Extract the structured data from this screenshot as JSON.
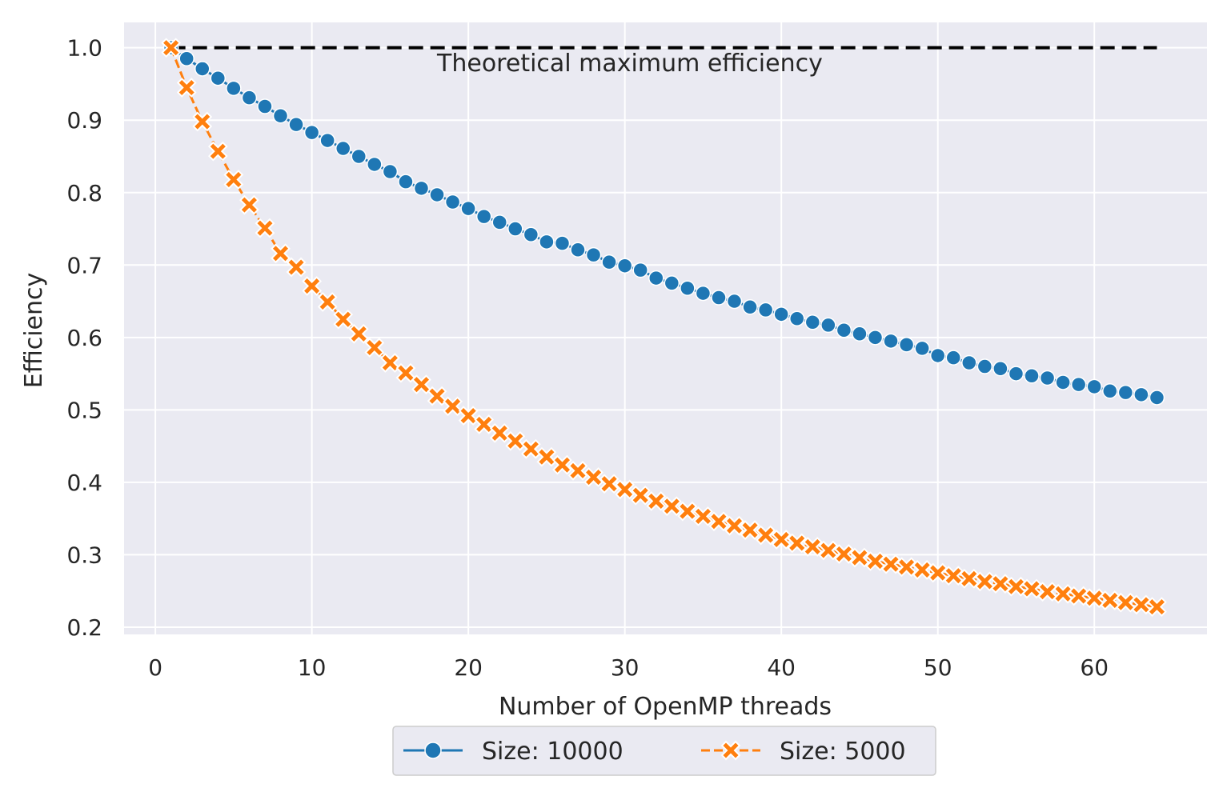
{
  "chart_data": {
    "type": "line",
    "xlabel": "Number of OpenMP threads",
    "ylabel": "Efficiency",
    "xlim": [
      -2,
      67.2
    ],
    "ylim": [
      0.19,
      1.035
    ],
    "xticks": [
      0,
      10,
      20,
      30,
      40,
      50,
      60
    ],
    "yticks": [
      0.2,
      0.3,
      0.4,
      0.5,
      0.6,
      0.7,
      0.8,
      0.9,
      1.0
    ],
    "grid": true,
    "legend": {
      "placement": "bottom-center, below plot",
      "columns": 2
    },
    "reference_line": {
      "x": [
        1,
        64
      ],
      "y": 1.0,
      "style": "dashed",
      "color": "#000000"
    },
    "annotation": {
      "text": "Theoretical maximum efficiency",
      "x": 18,
      "y": 0.98
    },
    "series": [
      {
        "name": "Size: 10000",
        "color": "#1f77b4",
        "marker": "circle",
        "line_style": "solid",
        "x": [
          1,
          2,
          3,
          4,
          5,
          6,
          7,
          8,
          9,
          10,
          11,
          12,
          13,
          14,
          15,
          16,
          17,
          18,
          19,
          20,
          21,
          22,
          23,
          24,
          25,
          26,
          27,
          28,
          29,
          30,
          31,
          32,
          33,
          34,
          35,
          36,
          37,
          38,
          39,
          40,
          41,
          42,
          43,
          44,
          45,
          46,
          47,
          48,
          49,
          50,
          51,
          52,
          53,
          54,
          55,
          56,
          57,
          58,
          59,
          60,
          61,
          62,
          63,
          64
        ],
        "values": [
          1.0,
          0.985,
          0.971,
          0.958,
          0.944,
          0.931,
          0.919,
          0.906,
          0.894,
          0.883,
          0.872,
          0.861,
          0.85,
          0.839,
          0.829,
          0.815,
          0.806,
          0.797,
          0.787,
          0.778,
          0.767,
          0.759,
          0.75,
          0.742,
          0.732,
          0.73,
          0.721,
          0.714,
          0.704,
          0.699,
          0.693,
          0.682,
          0.675,
          0.668,
          0.661,
          0.655,
          0.65,
          0.642,
          0.638,
          0.632,
          0.626,
          0.621,
          0.617,
          0.61,
          0.605,
          0.6,
          0.595,
          0.59,
          0.585,
          0.575,
          0.572,
          0.565,
          0.56,
          0.557,
          0.55,
          0.547,
          0.544,
          0.538,
          0.535,
          0.532,
          0.526,
          0.524,
          0.521,
          0.517
        ]
      },
      {
        "name": "Size: 5000",
        "color": "#ff7f0e",
        "marker": "x",
        "line_style": "dashed",
        "x": [
          1,
          2,
          3,
          4,
          5,
          6,
          7,
          8,
          9,
          10,
          11,
          12,
          13,
          14,
          15,
          16,
          17,
          18,
          19,
          20,
          21,
          22,
          23,
          24,
          25,
          26,
          27,
          28,
          29,
          30,
          31,
          32,
          33,
          34,
          35,
          36,
          37,
          38,
          39,
          40,
          41,
          42,
          43,
          44,
          45,
          46,
          47,
          48,
          49,
          50,
          51,
          52,
          53,
          54,
          55,
          56,
          57,
          58,
          59,
          60,
          61,
          62,
          63,
          64
        ],
        "values": [
          1.0,
          0.945,
          0.898,
          0.857,
          0.818,
          0.783,
          0.751,
          0.716,
          0.697,
          0.671,
          0.649,
          0.625,
          0.605,
          0.586,
          0.565,
          0.551,
          0.535,
          0.519,
          0.505,
          0.492,
          0.48,
          0.468,
          0.457,
          0.446,
          0.435,
          0.424,
          0.416,
          0.407,
          0.398,
          0.39,
          0.382,
          0.374,
          0.367,
          0.36,
          0.353,
          0.346,
          0.34,
          0.334,
          0.327,
          0.321,
          0.316,
          0.311,
          0.306,
          0.301,
          0.296,
          0.291,
          0.287,
          0.283,
          0.279,
          0.275,
          0.271,
          0.267,
          0.263,
          0.26,
          0.256,
          0.253,
          0.249,
          0.246,
          0.243,
          0.24,
          0.237,
          0.234,
          0.231,
          0.228
        ]
      }
    ]
  }
}
